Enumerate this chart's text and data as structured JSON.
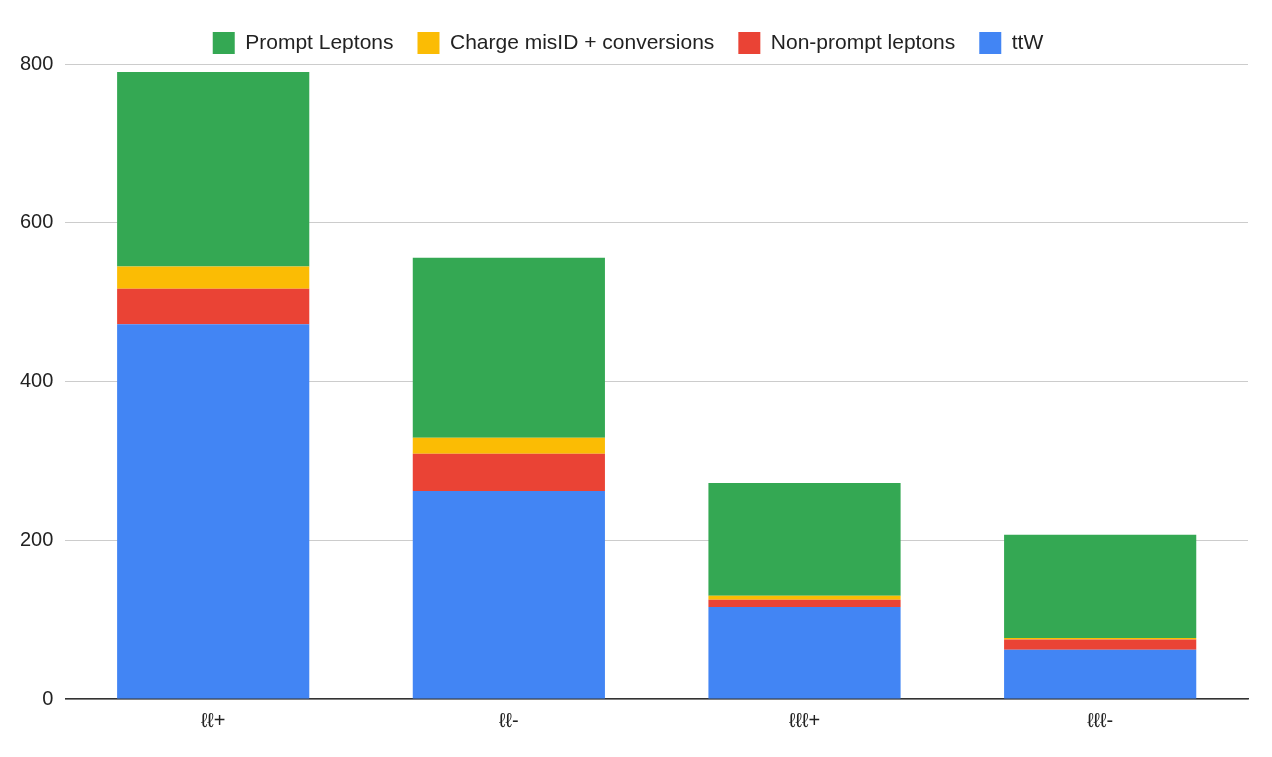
{
  "chart_data": {
    "type": "bar",
    "stacked": true,
    "categories": [
      "ℓℓ+",
      "ℓℓ-",
      "ℓℓℓ+",
      "ℓℓℓ-"
    ],
    "series": [
      {
        "name": "ttW",
        "color": "#4285f4",
        "values": [
          472,
          262,
          116,
          62
        ]
      },
      {
        "name": "Non-prompt leptons",
        "color": "#ea4335",
        "values": [
          45,
          47,
          9,
          13
        ]
      },
      {
        "name": "Charge misID + conversions",
        "color": "#fbbc04",
        "values": [
          28,
          20,
          5,
          2
        ]
      },
      {
        "name": "Prompt Leptons",
        "color": "#34a853",
        "values": [
          245,
          227,
          142,
          130
        ]
      }
    ],
    "ylim": [
      0,
      800
    ],
    "yticks": [
      0,
      200,
      400,
      600,
      800
    ],
    "grid": "y",
    "legend": "top"
  }
}
